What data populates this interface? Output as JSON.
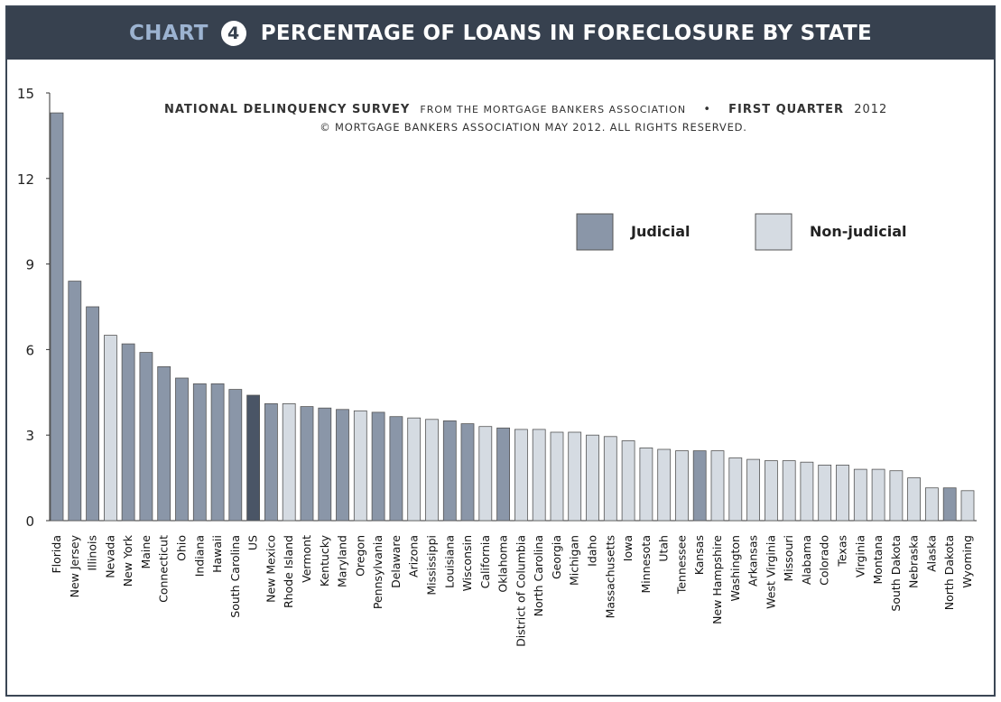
{
  "header": {
    "chart_word": "CHART",
    "chart_number": "4",
    "title": "PERCENTAGE OF LOANS IN FORECLOSURE BY STATE"
  },
  "source": {
    "survey": "NATIONAL DELINQUENCY SURVEY",
    "from": "FROM THE MORTGAGE BANKERS ASSOCIATION",
    "bullet": "•",
    "quarter": "FIRST QUARTER",
    "year": "2012",
    "copyright": "© MORTGAGE BANKERS ASSOCIATION MAY 2012. ALL RIGHTS RESERVED."
  },
  "chart_data": {
    "type": "bar",
    "ylim": [
      0,
      15
    ],
    "yticks": [
      0,
      3,
      6,
      9,
      12,
      15
    ],
    "grid": false,
    "legend_placement": "top-right",
    "colors": {
      "Judicial": "#8a96a8",
      "Non-judicial": "#d5dbe2",
      "US": "#4a5566"
    },
    "series": [
      {
        "name": "Judicial",
        "color": "#8a96a8"
      },
      {
        "name": "Non-judicial",
        "color": "#d5dbe2"
      }
    ],
    "categories": [
      "Florida",
      "New Jersey",
      "Illinois",
      "Nevada",
      "New York",
      "Maine",
      "Connecticut",
      "Ohio",
      "Indiana",
      "Hawaii",
      "South Carolina",
      "US",
      "New Mexico",
      "Rhode Island",
      "Vermont",
      "Kentucky",
      "Maryland",
      "Oregon",
      "Pennsylvania",
      "Delaware",
      "Arizona",
      "Mississippi",
      "Louisiana",
      "Wisconsin",
      "California",
      "Oklahoma",
      "District of Columbia",
      "North Carolina",
      "Georgia",
      "Michigan",
      "Idaho",
      "Massachusetts",
      "Iowa",
      "Minnesota",
      "Utah",
      "Tennessee",
      "Kansas",
      "New Hampshire",
      "Washington",
      "Arkansas",
      "West Virginia",
      "Missouri",
      "Alabama",
      "Colorado",
      "Texas",
      "Virginia",
      "Montana",
      "South Dakota",
      "Nebraska",
      "Alaska",
      "North Dakota",
      "Wyoming"
    ],
    "values": [
      14.3,
      8.4,
      7.5,
      6.5,
      6.2,
      5.9,
      5.4,
      5.0,
      4.8,
      4.8,
      4.6,
      4.4,
      4.1,
      4.1,
      4.0,
      3.95,
      3.9,
      3.85,
      3.8,
      3.65,
      3.6,
      3.55,
      3.5,
      3.4,
      3.3,
      3.25,
      3.2,
      3.2,
      3.1,
      3.1,
      3.0,
      2.95,
      2.8,
      2.55,
      2.5,
      2.45,
      2.45,
      2.45,
      2.2,
      2.15,
      2.1,
      2.1,
      2.05,
      1.95,
      1.95,
      1.8,
      1.8,
      1.75,
      1.5,
      1.15,
      1.15,
      1.05
    ],
    "groups": [
      "Judicial",
      "Judicial",
      "Judicial",
      "Non-judicial",
      "Judicial",
      "Judicial",
      "Judicial",
      "Judicial",
      "Judicial",
      "Judicial",
      "Judicial",
      "US",
      "Judicial",
      "Non-judicial",
      "Judicial",
      "Judicial",
      "Judicial",
      "Non-judicial",
      "Judicial",
      "Judicial",
      "Non-judicial",
      "Non-judicial",
      "Judicial",
      "Judicial",
      "Non-judicial",
      "Judicial",
      "Non-judicial",
      "Non-judicial",
      "Non-judicial",
      "Non-judicial",
      "Non-judicial",
      "Non-judicial",
      "Non-judicial",
      "Non-judicial",
      "Non-judicial",
      "Non-judicial",
      "Judicial",
      "Non-judicial",
      "Non-judicial",
      "Non-judicial",
      "Non-judicial",
      "Non-judicial",
      "Non-judicial",
      "Non-judicial",
      "Non-judicial",
      "Non-judicial",
      "Non-judicial",
      "Non-judicial",
      "Non-judicial",
      "Non-judicial",
      "Judicial",
      "Non-judicial"
    ]
  }
}
